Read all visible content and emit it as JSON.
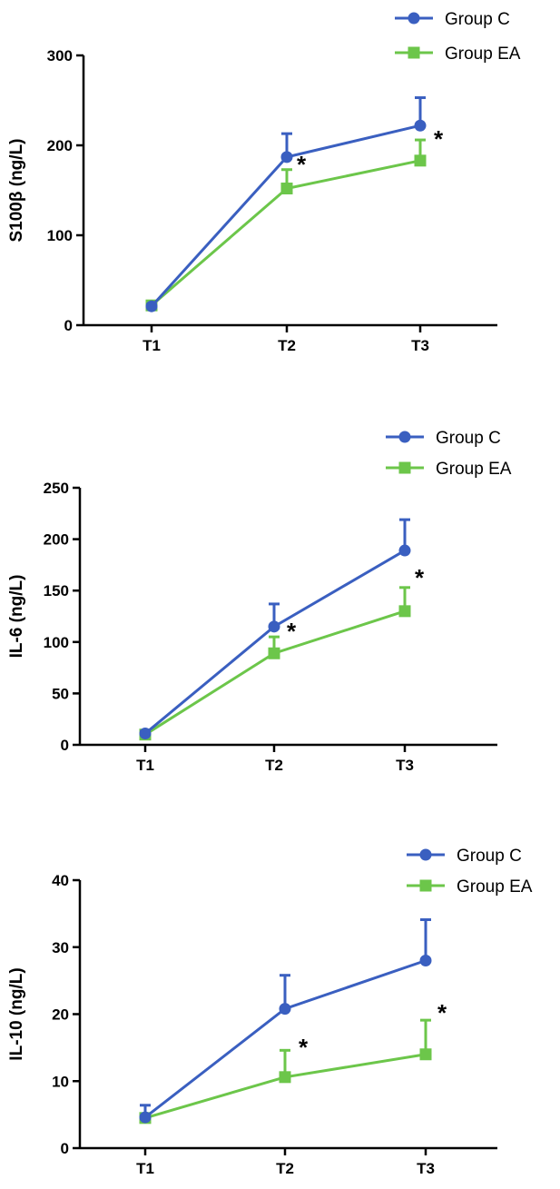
{
  "chart_data": [
    {
      "type": "line",
      "ylabel": "S100β (ng/L)",
      "categories": [
        "T1",
        "T2",
        "T3"
      ],
      "ylim": [
        0,
        300
      ],
      "yticks": [
        0,
        100,
        200,
        300
      ],
      "legend_position": "top-right",
      "series": [
        {
          "name": "Group C",
          "values": [
            21,
            187,
            222
          ],
          "error": [
            2,
            26,
            31
          ],
          "color": "#3a5fc0",
          "marker": "circle"
        },
        {
          "name": "Group EA",
          "values": [
            22,
            152,
            183
          ],
          "error": [
            2,
            21,
            23
          ],
          "color": "#6cc64a",
          "marker": "square"
        }
      ],
      "annotations": [
        "*",
        "*"
      ]
    },
    {
      "type": "line",
      "ylabel": "IL-6 (ng/L)",
      "categories": [
        "T1",
        "T2",
        "T3"
      ],
      "ylim": [
        0,
        250
      ],
      "yticks": [
        0,
        50,
        100,
        150,
        200,
        250
      ],
      "legend_position": "top-right",
      "series": [
        {
          "name": "Group C",
          "values": [
            11,
            115,
            189
          ],
          "error": [
            2,
            22,
            30
          ],
          "color": "#3a5fc0",
          "marker": "circle"
        },
        {
          "name": "Group EA",
          "values": [
            10,
            89,
            130
          ],
          "error": [
            2,
            16,
            23
          ],
          "color": "#6cc64a",
          "marker": "square"
        }
      ],
      "annotations": [
        "*",
        "*"
      ]
    },
    {
      "type": "line",
      "ylabel": "IL-10 (ng/L)",
      "categories": [
        "T1",
        "T2",
        "T3"
      ],
      "ylim": [
        0,
        40
      ],
      "yticks": [
        0,
        10,
        20,
        30,
        40
      ],
      "legend_position": "top-right",
      "series": [
        {
          "name": "Group C",
          "values": [
            4.6,
            20.8,
            28.0
          ],
          "error": [
            1.8,
            5.0,
            6.1
          ],
          "color": "#3a5fc0",
          "marker": "circle"
        },
        {
          "name": "Group EA",
          "values": [
            4.5,
            10.6,
            14.0
          ],
          "error": [
            0.6,
            4.0,
            5.1
          ],
          "color": "#6cc64a",
          "marker": "square"
        }
      ],
      "annotations": [
        "*",
        "*"
      ]
    }
  ]
}
